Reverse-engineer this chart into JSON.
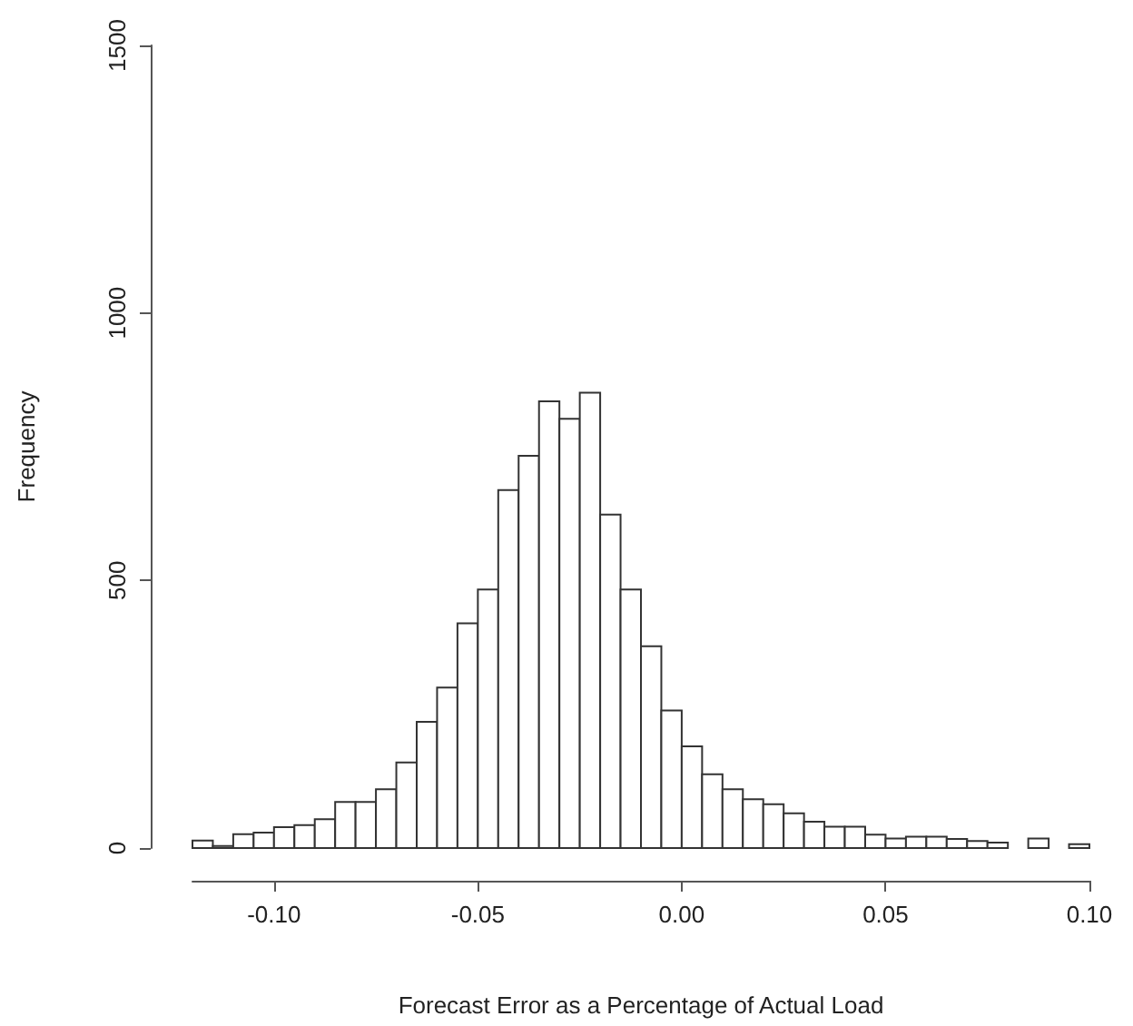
{
  "chart_data": {
    "type": "histogram",
    "xlabel": "Forecast Error as a Percentage of Actual Load",
    "ylabel": "Frequency",
    "bins": [
      -0.12,
      -0.115,
      -0.11,
      -0.105,
      -0.1,
      -0.095,
      -0.09,
      -0.085,
      -0.08,
      -0.075,
      -0.07,
      -0.065,
      -0.06,
      -0.055,
      -0.05,
      -0.045,
      -0.04,
      -0.035,
      -0.03,
      -0.025,
      -0.02,
      -0.015,
      -0.01,
      -0.005,
      0,
      0.005,
      0.01,
      0.015,
      0.02,
      0.025,
      0.03,
      0.035,
      0.04,
      0.045,
      0.05,
      0.055,
      0.06,
      0.065,
      0.07,
      0.075,
      0.08,
      0.085,
      0.09,
      0.095,
      0.1
    ],
    "values": [
      14,
      4,
      26,
      29,
      39,
      43,
      54,
      86,
      86,
      110,
      160,
      236,
      300,
      420,
      483,
      669,
      733,
      835,
      802,
      851,
      623,
      483,
      377,
      257,
      190,
      138,
      110,
      91,
      82,
      65,
      49,
      40,
      40,
      25,
      18,
      21,
      21,
      17,
      13,
      10,
      0,
      18,
      0,
      7
    ],
    "color": "#ffffff",
    "xlim": [
      -0.12,
      0.1
    ],
    "xticks": [
      {
        "value": -0.1,
        "label": "-0.10"
      },
      {
        "value": -0.05,
        "label": "-0.05"
      },
      {
        "value": 0,
        "label": "0.00"
      },
      {
        "value": 0.05,
        "label": "0.05"
      },
      {
        "value": 0.1,
        "label": "0.10"
      }
    ],
    "ylim": [
      0,
      1500
    ],
    "yticks": [
      0,
      500,
      1000,
      1500
    ],
    "grid": false
  }
}
